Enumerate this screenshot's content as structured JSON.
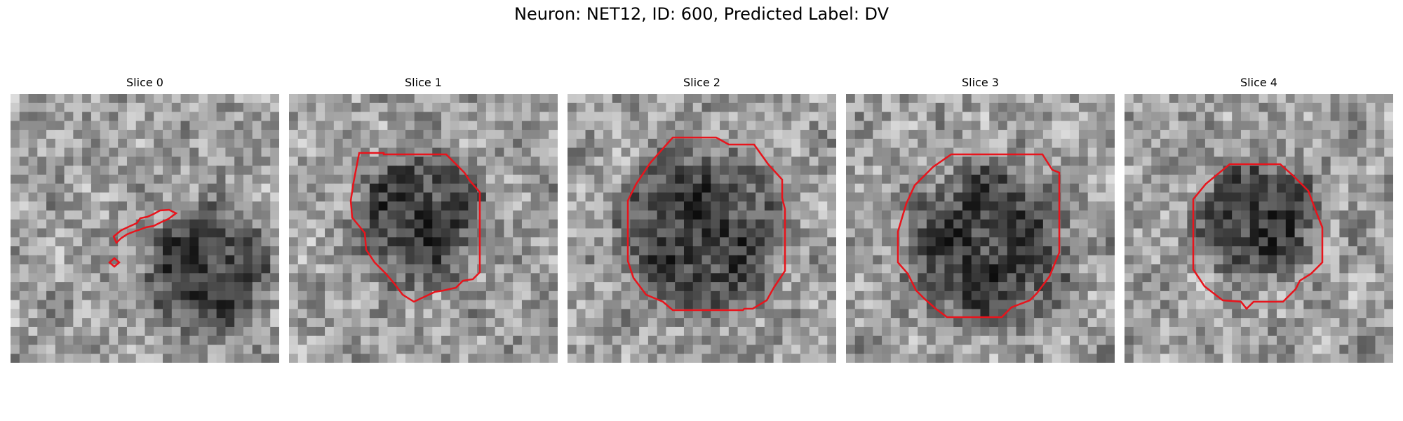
{
  "figure": {
    "title": "Neuron: NET12, ID: 600, Predicted Label: DV"
  },
  "contour_color": "#e8141c",
  "panels": [
    {
      "label": "Slice 0",
      "seed": 11
    },
    {
      "label": "Slice 1",
      "seed": 23
    },
    {
      "label": "Slice 2",
      "seed": 37
    },
    {
      "label": "Slice 3",
      "seed": 41
    },
    {
      "label": "Slice 4",
      "seed": 53
    }
  ]
}
